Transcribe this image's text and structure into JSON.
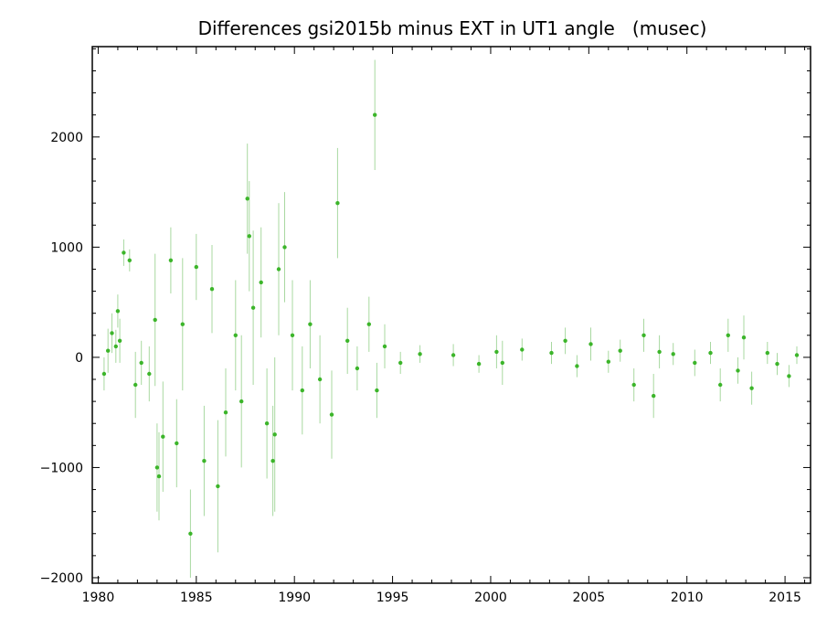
{
  "chart_data": {
    "type": "scatter",
    "title": "Differences gsi2015b minus EXT in UT1 angle   (musec)",
    "xlabel": "",
    "ylabel": "",
    "xlim": [
      1979.7,
      2016.3
    ],
    "ylim": [
      -2050,
      2820
    ],
    "x_ticks": [
      1980,
      1985,
      1990,
      1995,
      2000,
      2005,
      2010,
      2015
    ],
    "x_tick_labels": [
      "1980",
      "1985",
      "1990",
      "1995",
      "2000",
      "2005",
      "2010",
      "2015"
    ],
    "y_ticks": [
      -2000,
      -1000,
      0,
      1000,
      2000
    ],
    "y_tick_labels": [
      "−2000",
      "−1000",
      "0",
      "1000",
      "2000"
    ],
    "grid": false,
    "colors": {
      "points": "#3cb52a",
      "error_bars": "#a8d8a0",
      "axes": "#000000"
    },
    "series": [
      {
        "points": [
          {
            "x": 1980.3,
            "y": -150,
            "err": 150
          },
          {
            "x": 1980.5,
            "y": 60,
            "err": 200
          },
          {
            "x": 1980.7,
            "y": 220,
            "err": 180
          },
          {
            "x": 1980.9,
            "y": 100,
            "err": 150
          },
          {
            "x": 1981.0,
            "y": 420,
            "err": 150
          },
          {
            "x": 1981.1,
            "y": 150,
            "err": 200
          },
          {
            "x": 1981.3,
            "y": 950,
            "err": 120
          },
          {
            "x": 1981.6,
            "y": 880,
            "err": 100
          },
          {
            "x": 1981.9,
            "y": -250,
            "err": 300
          },
          {
            "x": 1982.2,
            "y": -50,
            "err": 200
          },
          {
            "x": 1982.6,
            "y": -150,
            "err": 250
          },
          {
            "x": 1982.9,
            "y": 340,
            "err": 600
          },
          {
            "x": 1983.0,
            "y": -1000,
            "err": 400
          },
          {
            "x": 1983.1,
            "y": -1080,
            "err": 400
          },
          {
            "x": 1983.3,
            "y": -720,
            "err": 500
          },
          {
            "x": 1983.7,
            "y": 880,
            "err": 300
          },
          {
            "x": 1984.0,
            "y": -780,
            "err": 400
          },
          {
            "x": 1984.3,
            "y": 300,
            "err": 600
          },
          {
            "x": 1984.7,
            "y": -1600,
            "err": 400
          },
          {
            "x": 1985.0,
            "y": 820,
            "err": 300
          },
          {
            "x": 1985.4,
            "y": -940,
            "err": 500
          },
          {
            "x": 1985.8,
            "y": 620,
            "err": 400
          },
          {
            "x": 1986.1,
            "y": -1170,
            "err": 600
          },
          {
            "x": 1986.5,
            "y": -500,
            "err": 400
          },
          {
            "x": 1987.0,
            "y": 200,
            "err": 500
          },
          {
            "x": 1987.3,
            "y": -400,
            "err": 600
          },
          {
            "x": 1987.6,
            "y": 1440,
            "err": 500
          },
          {
            "x": 1987.7,
            "y": 1100,
            "err": 500
          },
          {
            "x": 1987.9,
            "y": 450,
            "err": 700
          },
          {
            "x": 1988.3,
            "y": 680,
            "err": 500
          },
          {
            "x": 1988.6,
            "y": -600,
            "err": 500
          },
          {
            "x": 1988.9,
            "y": -940,
            "err": 500
          },
          {
            "x": 1989.0,
            "y": -700,
            "err": 700
          },
          {
            "x": 1989.2,
            "y": 800,
            "err": 600
          },
          {
            "x": 1989.5,
            "y": 1000,
            "err": 500
          },
          {
            "x": 1989.9,
            "y": 200,
            "err": 500
          },
          {
            "x": 1990.4,
            "y": -300,
            "err": 400
          },
          {
            "x": 1990.8,
            "y": 300,
            "err": 400
          },
          {
            "x": 1991.3,
            "y": -200,
            "err": 400
          },
          {
            "x": 1991.9,
            "y": -520,
            "err": 400
          },
          {
            "x": 1992.2,
            "y": 1400,
            "err": 500
          },
          {
            "x": 1992.7,
            "y": 150,
            "err": 300
          },
          {
            "x": 1993.2,
            "y": -100,
            "err": 200
          },
          {
            "x": 1993.8,
            "y": 300,
            "err": 250
          },
          {
            "x": 1994.1,
            "y": 2200,
            "err": 500
          },
          {
            "x": 1994.2,
            "y": -300,
            "err": 250
          },
          {
            "x": 1994.6,
            "y": 100,
            "err": 200
          },
          {
            "x": 1995.4,
            "y": -50,
            "err": 100
          },
          {
            "x": 1996.4,
            "y": 30,
            "err": 80
          },
          {
            "x": 1998.1,
            "y": 20,
            "err": 100
          },
          {
            "x": 1999.4,
            "y": -60,
            "err": 80
          },
          {
            "x": 2000.3,
            "y": 50,
            "err": 150
          },
          {
            "x": 2000.6,
            "y": -50,
            "err": 200
          },
          {
            "x": 2001.6,
            "y": 70,
            "err": 100
          },
          {
            "x": 2003.1,
            "y": 40,
            "err": 100
          },
          {
            "x": 2003.8,
            "y": 150,
            "err": 120
          },
          {
            "x": 2004.4,
            "y": -80,
            "err": 100
          },
          {
            "x": 2005.1,
            "y": 120,
            "err": 150
          },
          {
            "x": 2006.0,
            "y": -40,
            "err": 100
          },
          {
            "x": 2006.6,
            "y": 60,
            "err": 100
          },
          {
            "x": 2007.3,
            "y": -250,
            "err": 150
          },
          {
            "x": 2007.8,
            "y": 200,
            "err": 150
          },
          {
            "x": 2008.3,
            "y": -350,
            "err": 200
          },
          {
            "x": 2008.6,
            "y": 50,
            "err": 150
          },
          {
            "x": 2009.3,
            "y": 30,
            "err": 100
          },
          {
            "x": 2010.4,
            "y": -50,
            "err": 120
          },
          {
            "x": 2011.2,
            "y": 40,
            "err": 100
          },
          {
            "x": 2011.7,
            "y": -250,
            "err": 150
          },
          {
            "x": 2012.1,
            "y": 200,
            "err": 150
          },
          {
            "x": 2012.6,
            "y": -120,
            "err": 120
          },
          {
            "x": 2012.9,
            "y": 180,
            "err": 200
          },
          {
            "x": 2013.3,
            "y": -280,
            "err": 150
          },
          {
            "x": 2014.1,
            "y": 40,
            "err": 100
          },
          {
            "x": 2014.6,
            "y": -60,
            "err": 100
          },
          {
            "x": 2015.2,
            "y": -170,
            "err": 100
          },
          {
            "x": 2015.6,
            "y": 20,
            "err": 80
          }
        ]
      }
    ]
  }
}
